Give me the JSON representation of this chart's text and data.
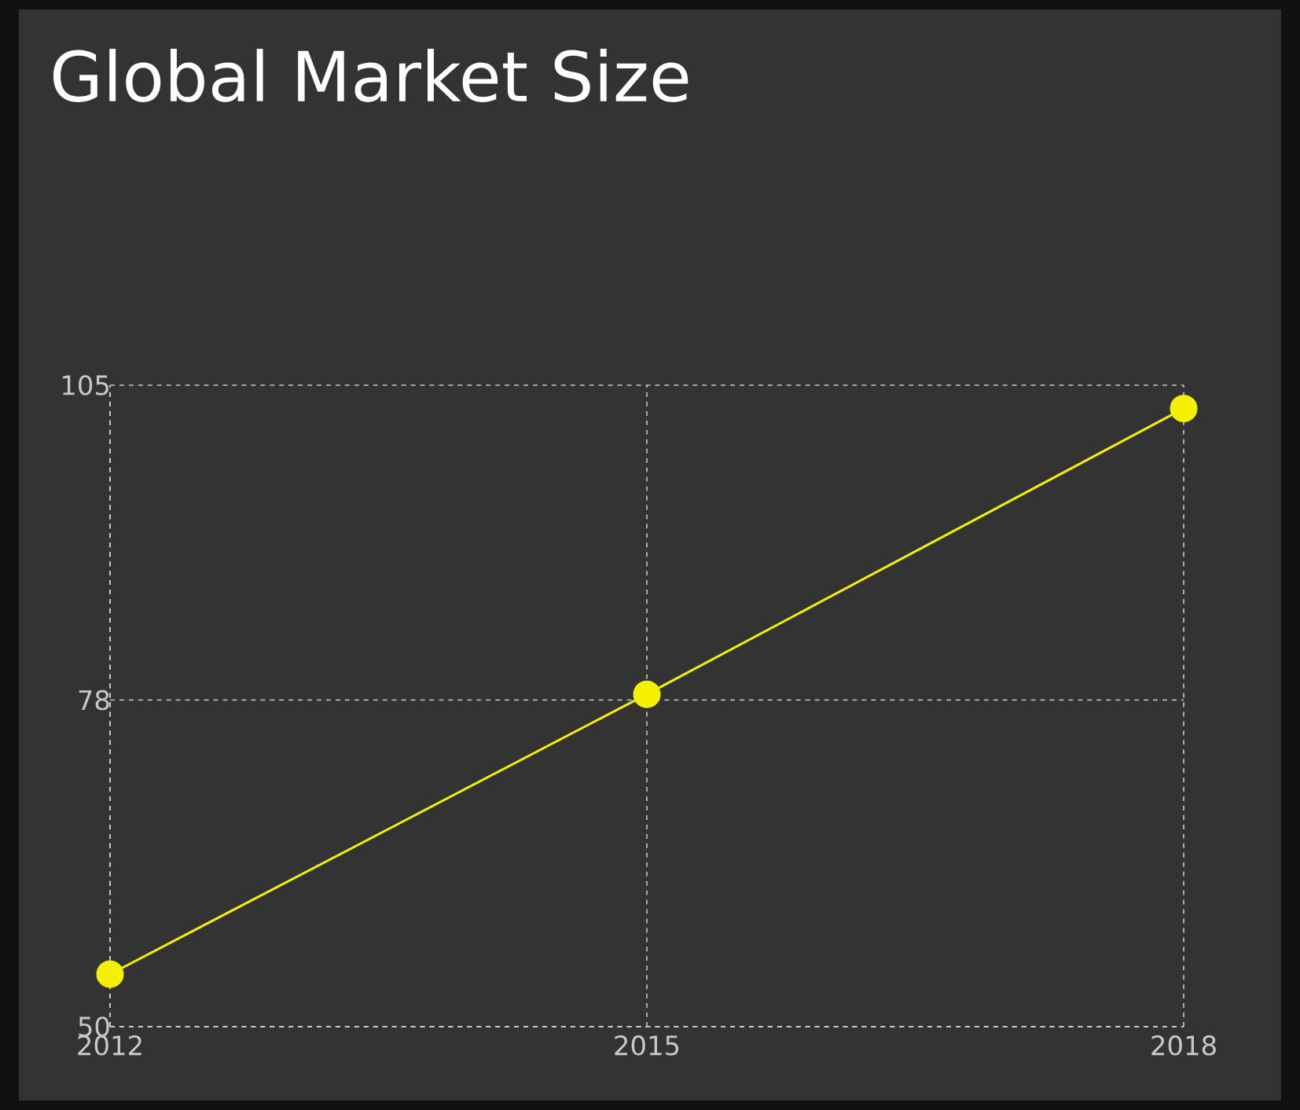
{
  "chart_data": {
    "type": "line",
    "title": "Global Market Size",
    "x": [
      2012,
      2015,
      2018
    ],
    "series": [
      {
        "color": "#f5f000",
        "values": [
          54.5,
          78.5,
          103
        ]
      }
    ],
    "xlim": [
      2012,
      2018
    ],
    "xticks": [
      2012,
      2015,
      2018
    ],
    "ylim": [
      50,
      105
    ],
    "yticks": [
      50,
      78,
      105
    ],
    "grid": true,
    "marker": "circle",
    "line_style": "solid"
  }
}
